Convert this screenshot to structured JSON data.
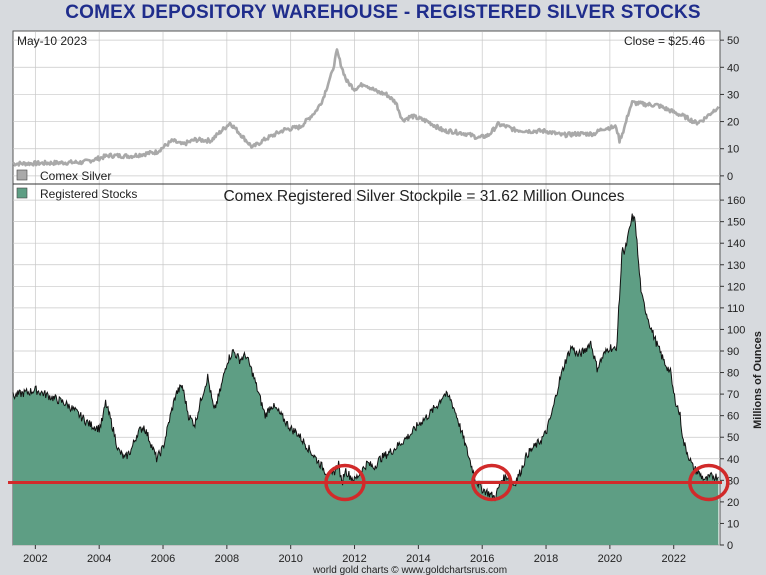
{
  "title": "COMEX DEPOSITORY WAREHOUSE - REGISTERED SILVER STOCKS",
  "footer": "world gold charts © www.goldchartsrus.com",
  "colors": {
    "title": "#1f2d8c",
    "silver": "#a9a9a9",
    "stocks_fill": "#5e9e84",
    "line": "#111111",
    "highlight": "#d12a2a",
    "grid": "#c8c8c8"
  },
  "chart_data": [
    {
      "type": "line",
      "panel": "top",
      "date_label": "May-10  2023",
      "close_label": "Close = $25.46",
      "legend": "Comex Silver",
      "y_ticks": [
        0,
        10,
        20,
        30,
        40,
        50
      ],
      "ylim": [
        -3,
        53
      ],
      "xlim": [
        2001.3,
        2023.45
      ],
      "series": [
        {
          "name": "Comex Silver",
          "x": [
            2001.3,
            2002.0,
            2003.0,
            2003.5,
            2004.0,
            2004.3,
            2005.0,
            2005.8,
            2006.3,
            2006.6,
            2007.0,
            2007.5,
            2008.1,
            2008.3,
            2008.8,
            2009.2,
            2009.8,
            2010.3,
            2010.8,
            2011.0,
            2011.2,
            2011.3,
            2011.45,
            2011.6,
            2011.75,
            2012.0,
            2012.3,
            2012.7,
            2013.0,
            2013.3,
            2013.5,
            2013.8,
            2014.3,
            2014.8,
            2015.0,
            2015.5,
            2015.9,
            2016.2,
            2016.5,
            2016.8,
            2017.0,
            2017.5,
            2018.0,
            2018.5,
            2019.0,
            2019.5,
            2019.8,
            2020.2,
            2020.3,
            2020.45,
            2020.6,
            2020.7,
            2021.0,
            2021.5,
            2022.0,
            2022.4,
            2022.7,
            2022.9,
            2023.2,
            2023.4
          ],
          "values": [
            4.5,
            4.6,
            4.9,
            5.0,
            6.5,
            7.5,
            7.3,
            8.8,
            13.0,
            11.5,
            13.3,
            13.0,
            19.5,
            17.0,
            10.5,
            13.5,
            17.0,
            18.0,
            24.0,
            28.0,
            35.0,
            38.0,
            46.0,
            40.0,
            35.0,
            32.0,
            34.0,
            31.0,
            30.0,
            27.0,
            20.5,
            22.0,
            20.0,
            16.5,
            16.5,
            15.5,
            14.0,
            15.0,
            19.0,
            18.0,
            17.0,
            16.5,
            16.5,
            15.0,
            15.5,
            15.5,
            17.5,
            18.0,
            13.0,
            17.5,
            24.0,
            27.0,
            26.5,
            26.0,
            23.5,
            21.5,
            19.5,
            20.5,
            23.5,
            25.5
          ]
        }
      ]
    },
    {
      "type": "area",
      "panel": "bottom",
      "legend": "Registered Stocks",
      "title": "Comex Registered Silver Stockpile = 31.62 Million Ounces",
      "ylabel": "Millions of Ounces",
      "y_ticks": [
        0,
        10,
        20,
        30,
        40,
        50,
        60,
        70,
        80,
        90,
        100,
        110,
        120,
        130,
        140,
        150,
        160
      ],
      "x_ticks": [
        "2002",
        "2004",
        "2006",
        "2008",
        "2010",
        "2012",
        "2014",
        "2016",
        "2018",
        "2020",
        "2022"
      ],
      "ylim": [
        0,
        167
      ],
      "xlim": [
        2001.3,
        2023.45
      ],
      "reference_line": 29,
      "highlighted_years": [
        2011.7,
        2016.3,
        2023.1
      ],
      "series": [
        {
          "name": "Registered Stocks",
          "x": [
            2001.3,
            2001.5,
            2001.8,
            2002.0,
            2002.3,
            2002.6,
            2002.9,
            2003.1,
            2003.4,
            2003.7,
            2004.0,
            2004.1,
            2004.2,
            2004.4,
            2004.6,
            2004.8,
            2005.0,
            2005.2,
            2005.4,
            2005.6,
            2005.8,
            2006.0,
            2006.2,
            2006.4,
            2006.6,
            2006.8,
            2007.0,
            2007.2,
            2007.4,
            2007.6,
            2007.8,
            2008.0,
            2008.2,
            2008.4,
            2008.6,
            2008.8,
            2009.0,
            2009.2,
            2009.4,
            2009.6,
            2009.8,
            2010.0,
            2010.2,
            2010.5,
            2010.8,
            2011.1,
            2011.3,
            2011.5,
            2011.6,
            2011.7,
            2011.8,
            2012.0,
            2012.2,
            2012.4,
            2012.6,
            2012.8,
            2013.0,
            2013.2,
            2013.5,
            2013.8,
            2014.0,
            2014.3,
            2014.6,
            2014.8,
            2015.0,
            2015.2,
            2015.4,
            2015.6,
            2015.8,
            2016.0,
            2016.2,
            2016.4,
            2016.6,
            2016.8,
            2017.0,
            2017.2,
            2017.4,
            2017.6,
            2017.8,
            2018.0,
            2018.2,
            2018.4,
            2018.6,
            2018.8,
            2019.0,
            2019.2,
            2019.4,
            2019.6,
            2019.8,
            2020.0,
            2020.2,
            2020.4,
            2020.45,
            2020.5,
            2020.6,
            2020.7,
            2020.8,
            2020.9,
            2021.0,
            2021.1,
            2021.2,
            2021.3,
            2021.5,
            2021.7,
            2021.9,
            2022.0,
            2022.2,
            2022.3,
            2022.5,
            2022.6,
            2022.8,
            2023.0,
            2023.2,
            2023.4
          ],
          "values": [
            69,
            70,
            71,
            72,
            70,
            68,
            66,
            64,
            60,
            56,
            54,
            58,
            66,
            56,
            44,
            40,
            44,
            52,
            55,
            48,
            40,
            45,
            58,
            70,
            74,
            60,
            56,
            68,
            78,
            62,
            72,
            85,
            90,
            86,
            88,
            80,
            70,
            60,
            65,
            62,
            58,
            54,
            52,
            46,
            40,
            34,
            32,
            38,
            28,
            35,
            33,
            30,
            34,
            38,
            36,
            40,
            42,
            44,
            48,
            52,
            56,
            60,
            65,
            70,
            68,
            60,
            50,
            40,
            30,
            26,
            24,
            22,
            30,
            32,
            28,
            34,
            42,
            45,
            48,
            52,
            62,
            75,
            85,
            92,
            88,
            90,
            94,
            82,
            88,
            92,
            90,
            140,
            135,
            138,
            145,
            152,
            150,
            130,
            115,
            110,
            105,
            100,
            92,
            85,
            80,
            70,
            60,
            48,
            40,
            36,
            33,
            30,
            32,
            31.6
          ]
        }
      ]
    }
  ]
}
